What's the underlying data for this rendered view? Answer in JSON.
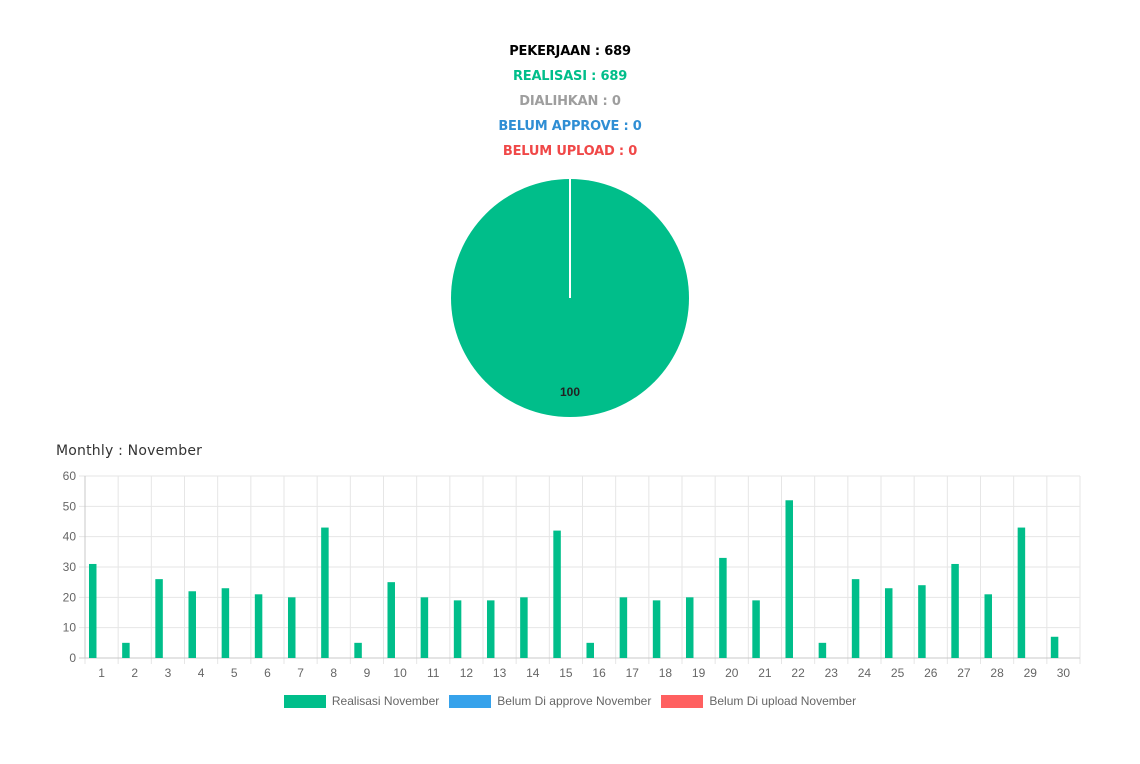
{
  "summary": {
    "pekerjaan": "PEKERJAAN : 689",
    "realisasi": "REALISASI : 689",
    "dialihkan": "DIALIHKAN : 0",
    "belum_approve": "BELUM APPROVE : 0",
    "belum_upload": "BELUM UPLOAD : 0",
    "colors": {
      "pekerjaan": "#000000",
      "realisasi": "#00be8a",
      "dialihkan": "#9e9e9e",
      "belum_approve": "#2f8ed4",
      "belum_upload": "#f04848"
    }
  },
  "chart_data": [
    {
      "type": "pie",
      "title": "",
      "slices": [
        {
          "label": "Realisasi",
          "value": 100,
          "color": "#00be8a"
        }
      ],
      "data_label": "100"
    },
    {
      "type": "bar",
      "title": "Monthly : November",
      "xlabel": "",
      "ylabel": "",
      "ylim": [
        0,
        60
      ],
      "yticks": [
        0,
        10,
        20,
        30,
        40,
        50,
        60
      ],
      "grid": true,
      "legend_position": "bottom",
      "categories": [
        "1",
        "2",
        "3",
        "4",
        "5",
        "6",
        "7",
        "8",
        "9",
        "10",
        "11",
        "12",
        "13",
        "14",
        "15",
        "16",
        "17",
        "18",
        "19",
        "20",
        "21",
        "22",
        "23",
        "24",
        "25",
        "26",
        "27",
        "28",
        "29",
        "30"
      ],
      "series": [
        {
          "name": "Realisasi November",
          "color": "#00be8a",
          "values": [
            31,
            5,
            26,
            22,
            23,
            21,
            20,
            43,
            5,
            25,
            20,
            19,
            19,
            20,
            42,
            5,
            20,
            19,
            20,
            33,
            19,
            52,
            5,
            26,
            23,
            24,
            31,
            21,
            43,
            7
          ]
        },
        {
          "name": "Belum Di approve November",
          "color": "#36a2eb",
          "values": [
            0,
            0,
            0,
            0,
            0,
            0,
            0,
            0,
            0,
            0,
            0,
            0,
            0,
            0,
            0,
            0,
            0,
            0,
            0,
            0,
            0,
            0,
            0,
            0,
            0,
            0,
            0,
            0,
            0,
            0
          ]
        },
        {
          "name": "Belum Di upload November",
          "color": "#ff6060",
          "values": [
            0,
            0,
            0,
            0,
            0,
            0,
            0,
            0,
            0,
            0,
            0,
            0,
            0,
            0,
            0,
            0,
            0,
            0,
            0,
            0,
            0,
            0,
            0,
            0,
            0,
            0,
            0,
            0,
            0,
            0
          ]
        }
      ]
    }
  ]
}
